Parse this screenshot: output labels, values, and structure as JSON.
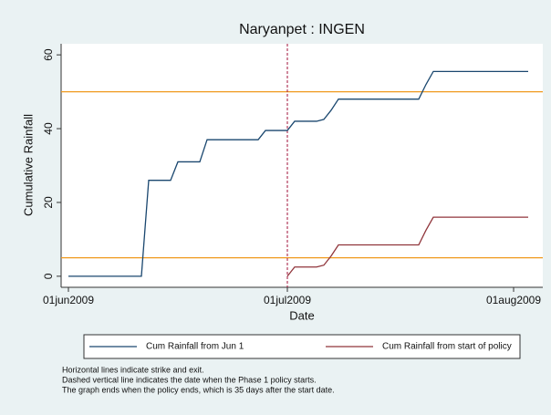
{
  "chart_data": {
    "type": "line",
    "title": "Naryanpet : INGEN",
    "y_label": "Cumulative Rainfall",
    "x_label": "Date",
    "x": [
      "2009-06-01",
      "2009-06-11",
      "2009-06-12",
      "2009-06-15",
      "2009-06-16",
      "2009-06-19",
      "2009-06-20",
      "2009-06-27",
      "2009-06-28",
      "2009-07-01",
      "2009-07-02",
      "2009-07-05",
      "2009-07-06",
      "2009-07-07",
      "2009-07-08",
      "2009-07-19",
      "2009-07-20",
      "2009-07-21",
      "2009-08-03"
    ],
    "series": [
      {
        "name": "Cum Rainfall from Jun 1",
        "color": "#1a476f",
        "values": [
          0,
          0,
          26,
          26,
          31,
          31,
          37,
          37,
          39.5,
          39.5,
          42,
          42,
          42.5,
          45,
          48,
          48,
          52,
          55.5,
          55.5
        ]
      },
      {
        "name": "Cum Rainfall from start of policy",
        "color": "#90353b",
        "values": [
          null,
          null,
          null,
          null,
          null,
          null,
          null,
          null,
          null,
          0,
          2.5,
          2.5,
          3,
          5.5,
          8.5,
          8.5,
          12.5,
          16,
          16
        ]
      }
    ],
    "xlim": [
      "2009-05-31",
      "2009-08-05"
    ],
    "xticks": [
      {
        "value": "2009-06-01",
        "label": "01jun2009"
      },
      {
        "value": "2009-07-01",
        "label": "01jul2009"
      },
      {
        "value": "2009-08-01",
        "label": "01aug2009"
      }
    ],
    "ylim": [
      -3,
      63
    ],
    "yticks": [
      0,
      20,
      40,
      60
    ],
    "grid": false,
    "hlines": [
      5,
      50
    ],
    "hline_color": "#f09a1e",
    "vline": "2009-07-01",
    "vline_color": "#a0103a",
    "notes": [
      "Horizontal lines indicate strike and exit.",
      "Dashed vertical line indicates the date when the Phase 1 policy starts.",
      "The graph ends when the policy ends, which is 35 days after the start date."
    ]
  }
}
